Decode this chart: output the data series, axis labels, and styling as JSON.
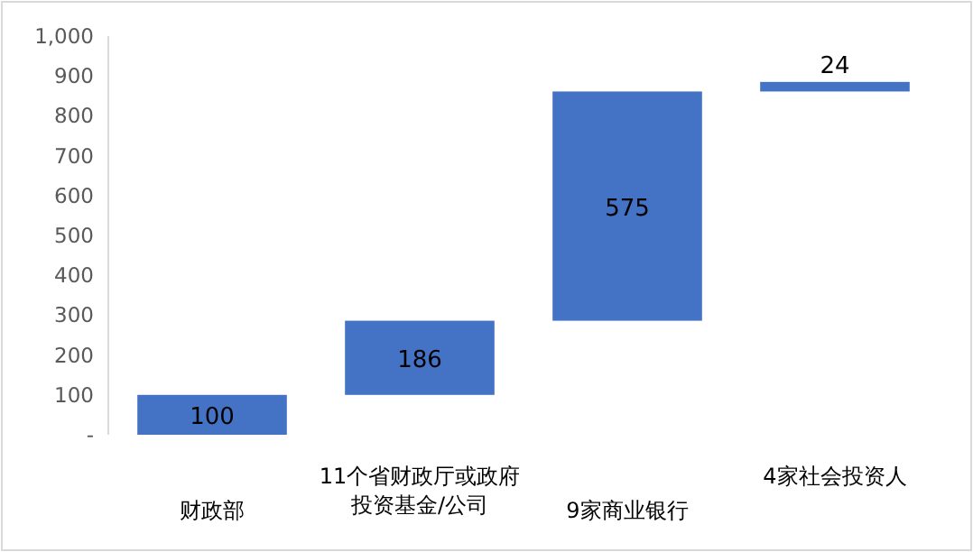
{
  "chart_data": {
    "type": "bar",
    "categories": [
      "财政部",
      "11个省财政厅或政府投资基金/公司",
      "9家商业银行",
      "4家社会投资人"
    ],
    "values": [
      100,
      186,
      575,
      24
    ],
    "base": [
      0,
      100,
      286,
      861
    ],
    "color": "#4472c4",
    "data_labels": true,
    "ylim": [
      0,
      1000
    ],
    "yticks": [
      {
        "value": 0,
        "label": "-"
      },
      100,
      200,
      300,
      400,
      500,
      600,
      700,
      800,
      900,
      {
        "value": 1000,
        "label": "1,000"
      }
    ]
  }
}
